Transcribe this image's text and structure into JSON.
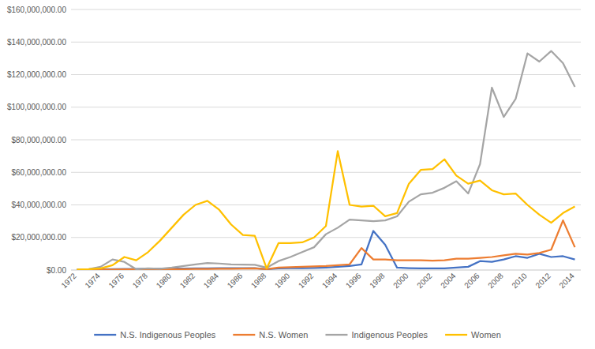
{
  "chart_data": {
    "type": "line",
    "categories": [
      "1972",
      null,
      "1974",
      null,
      "1976",
      null,
      "1978",
      null,
      "1980",
      null,
      "1982",
      null,
      "1984",
      null,
      "1986",
      null,
      "1988",
      null,
      "1990",
      null,
      "1992",
      null,
      "1994",
      null,
      "1996",
      null,
      "1998",
      null,
      "2000",
      null,
      "2002",
      null,
      "2004",
      null,
      "2006",
      null,
      "2008",
      null,
      "2010",
      null,
      "2012",
      null,
      "2014"
    ],
    "series": [
      {
        "name": "N.S. Indigenous Peoples",
        "color": "#4472c4",
        "values": [
          300000,
          400000,
          500000,
          600000,
          700000,
          700000,
          800000,
          800000,
          900000,
          900000,
          1000000,
          1000000,
          1100000,
          1100000,
          1200000,
          1200000,
          500000,
          1000000,
          1100000,
          1200000,
          1300000,
          1500000,
          2000000,
          2500000,
          3500000,
          24000000,
          15500000,
          1500000,
          1200000,
          1000000,
          1000000,
          1000000,
          1500000,
          2000000,
          5500000,
          5000000,
          6500000,
          8500000,
          7500000,
          10000000,
          8000000,
          8500000,
          6500000
        ]
      },
      {
        "name": "N.S. Women",
        "color": "#ed7d31",
        "values": [
          100000,
          200000,
          300000,
          300000,
          400000,
          400000,
          500000,
          500000,
          600000,
          600000,
          700000,
          700000,
          800000,
          800000,
          900000,
          1000000,
          500000,
          1500000,
          1800000,
          2000000,
          2200000,
          2500000,
          3000000,
          3500000,
          13500000,
          6500000,
          6500000,
          6000000,
          6000000,
          6000000,
          5800000,
          6000000,
          7000000,
          7000000,
          7500000,
          8000000,
          9000000,
          10000000,
          9500000,
          10500000,
          12500000,
          30500000,
          14000000
        ]
      },
      {
        "name": "Indigenous Peoples",
        "color": "#a5a5a5",
        "values": [
          300000,
          500000,
          2000000,
          6500000,
          5000000,
          500000,
          1000000,
          800000,
          1500000,
          2500000,
          3500000,
          4300000,
          4000000,
          3500000,
          3300000,
          3200000,
          1500000,
          5500000,
          8000000,
          11000000,
          14000000,
          22000000,
          26000000,
          31000000,
          30500000,
          30000000,
          30500000,
          33000000,
          42000000,
          46500000,
          47500000,
          50500000,
          54500000,
          47000000,
          65000000,
          112000000,
          94000000,
          105000000,
          133000000,
          128000000,
          134500000,
          127000000,
          112500000
        ]
      },
      {
        "name": "Women",
        "color": "#ffc000",
        "values": [
          300000,
          500000,
          1000000,
          3000000,
          8000000,
          6000000,
          11000000,
          18000000,
          26000000,
          34000000,
          40000000,
          42500000,
          37000000,
          28000000,
          21500000,
          21000000,
          1000000,
          16500000,
          16500000,
          17000000,
          20000000,
          27000000,
          73000000,
          40000000,
          39000000,
          39500000,
          33000000,
          35000000,
          53000000,
          61500000,
          62000000,
          68000000,
          58000000,
          53000000,
          55000000,
          49000000,
          46500000,
          47000000,
          40000000,
          34000000,
          29000000,
          35000000,
          39000000
        ]
      }
    ],
    "ylim": [
      0,
      160000000
    ],
    "yticks": [
      {
        "value": 0,
        "label": "$0.00"
      },
      {
        "value": 20000000,
        "label": "$20,000,000.00"
      },
      {
        "value": 40000000,
        "label": "$40,000,000.00"
      },
      {
        "value": 60000000,
        "label": "$60,000,000.00"
      },
      {
        "value": 80000000,
        "label": "$80,000,000.00"
      },
      {
        "value": 100000000,
        "label": "$100,000,000.00"
      },
      {
        "value": 120000000,
        "label": "$120,000,000.00"
      },
      {
        "value": 140000000,
        "label": "$140,000,000.00"
      },
      {
        "value": 160000000,
        "label": "$160,000,000.00"
      }
    ],
    "grid": true,
    "legend": "bottom"
  }
}
